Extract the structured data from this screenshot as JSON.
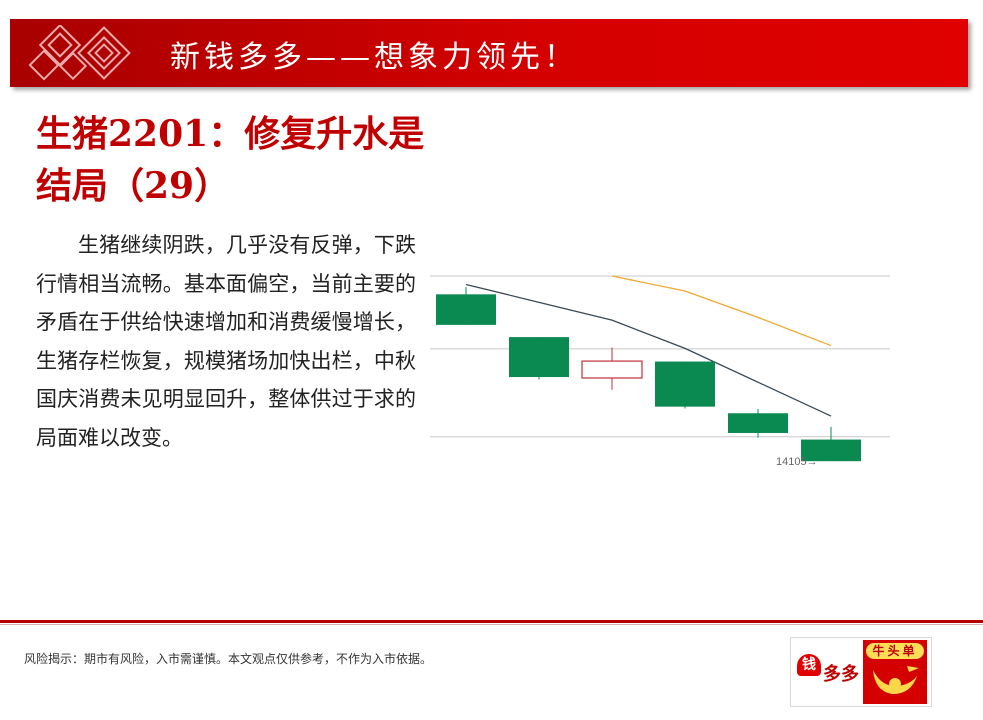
{
  "header": {
    "title": "新钱多多——想象力领先！"
  },
  "slide": {
    "title": "生猪2201：修复升水是结局（29）",
    "body": "生猪继续阴跌，几乎没有反弹，下跌行情相当流畅。基本面偏空，当前主要的矛盾在于供给快速增加和消费缓慢增长，生猪存栏恢复，规模猪场加快出栏，中秋国庆消费未见明显回升，整体供过于求的局面难以改变。"
  },
  "chart_data": {
    "type": "candlestick",
    "up_color": "#c0303a",
    "down_color": "#0a8a50",
    "candles": [
      {
        "open": 15810,
        "close": 15160,
        "high": 15960,
        "low": 15160
      },
      {
        "open": 14900,
        "close": 14050,
        "high": 14900,
        "low": 14000
      },
      {
        "open": 14030,
        "close": 14390,
        "high": 14680,
        "low": 13780
      },
      {
        "open": 14380,
        "close": 13420,
        "high": 14380,
        "low": 13380
      },
      {
        "open": 13280,
        "close": 12860,
        "high": 13370,
        "low": 12760
      },
      {
        "open": 12720,
        "close": 12260,
        "high": 12990,
        "low": 12260
      }
    ],
    "moving_averages": [
      {
        "color": "#3a4a55",
        "values": [
          16020,
          15640,
          15260,
          14660,
          13940,
          13220
        ]
      },
      {
        "color": "#f0a830",
        "values": [
          null,
          null,
          16200,
          15880,
          15320,
          14720
        ]
      }
    ],
    "ylim": [
      12200,
      16200
    ],
    "gridlines": [
      16200,
      14650,
      12780
    ],
    "annotation": "14105→",
    "grid": true
  },
  "footer": {
    "disclaimer": "风险揭示：期市有风险，入市需谨慎。本文观点仅供参考，不作为入市依据。"
  },
  "brand": {
    "heart_char": "钱",
    "name_text": "多多",
    "badge_text": "牛头单"
  }
}
